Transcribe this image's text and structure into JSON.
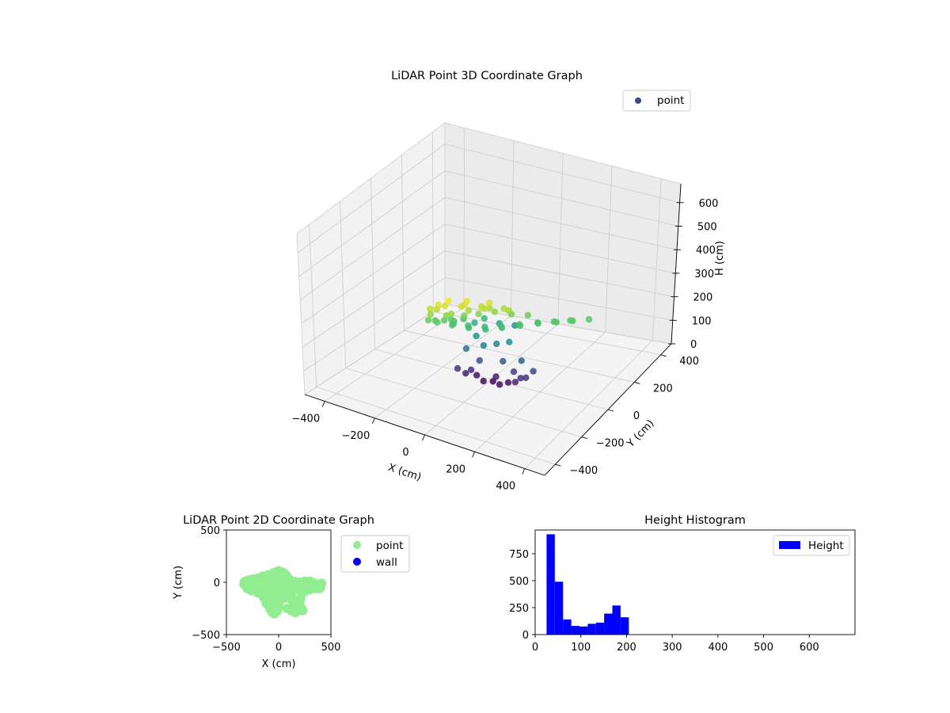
{
  "chart_data": [
    {
      "type": "scatter",
      "title": "LiDAR Point 3D Coordinate Graph",
      "xlabel": "X (cm)",
      "ylabel": "Y (cm)",
      "zlabel": "H (cm)",
      "xticks": [
        "−400",
        "−200",
        "0",
        "200",
        "400"
      ],
      "yticks": [
        "−400",
        "−200",
        "0",
        "200",
        "400"
      ],
      "zticks": [
        "0",
        "100",
        "200",
        "300",
        "400",
        "500",
        "600"
      ],
      "xlim": [
        -480,
        480
      ],
      "ylim": [
        -480,
        480
      ],
      "zlim": [
        0,
        680
      ],
      "z_inverted": true,
      "colormap": "viridis",
      "legend": {
        "position": "top-right",
        "entries": [
          {
            "label": "point",
            "color": "#3b4a8c"
          }
        ]
      },
      "series": [
        {
          "name": "point",
          "points": [
            [
              -80,
              -60,
              60
            ],
            [
              -20,
              -40,
              40
            ],
            [
              40,
              -30,
              40
            ],
            [
              100,
              -20,
              60
            ],
            [
              140,
              -10,
              80
            ],
            [
              -60,
              -20,
              45
            ],
            [
              0,
              -10,
              35
            ],
            [
              60,
              -5,
              45
            ],
            [
              110,
              0,
              70
            ],
            [
              -100,
              -80,
              80
            ],
            [
              160,
              10,
              100
            ],
            [
              -70,
              -40,
              70
            ],
            [
              20,
              -20,
              60
            ],
            [
              90,
              -10,
              90
            ],
            [
              -40,
              -30,
              110
            ],
            [
              50,
              -15,
              120
            ],
            [
              120,
              0,
              130
            ],
            [
              -90,
              -40,
              150
            ],
            [
              -20,
              -30,
              170
            ],
            [
              30,
              -20,
              180
            ],
            [
              80,
              -10,
              190
            ],
            [
              -60,
              -20,
              200
            ],
            [
              -60,
              200,
              200
            ],
            [
              -100,
              160,
              215
            ],
            [
              -150,
              80,
              230
            ],
            [
              -180,
              0,
              250
            ],
            [
              -200,
              -80,
              265
            ],
            [
              -180,
              -140,
              275
            ],
            [
              -120,
              -160,
              270
            ],
            [
              -60,
              -150,
              260
            ],
            [
              0,
              -130,
              250
            ],
            [
              60,
              -110,
              245
            ],
            [
              120,
              -90,
              250
            ],
            [
              180,
              -60,
              255
            ],
            [
              240,
              -30,
              260
            ],
            [
              300,
              0,
              262
            ],
            [
              360,
              20,
              265
            ],
            [
              420,
              40,
              268
            ],
            [
              -140,
              120,
              245
            ],
            [
              -170,
              40,
              255
            ],
            [
              -160,
              -40,
              265
            ],
            [
              -140,
              -100,
              270
            ],
            [
              -80,
              -120,
              260
            ],
            [
              -20,
              -110,
              255
            ],
            [
              40,
              -90,
              250
            ],
            [
              100,
              -70,
              252
            ],
            [
              160,
              -40,
              256
            ],
            [
              220,
              -10,
              260
            ],
            [
              280,
              10,
              262
            ],
            [
              340,
              30,
              265
            ],
            [
              -80,
              -60,
              285
            ],
            [
              -20,
              -50,
              290
            ],
            [
              40,
              -30,
              295
            ],
            [
              100,
              -10,
              285
            ],
            [
              160,
              10,
              280
            ],
            [
              30,
              -45,
              310
            ],
            [
              -40,
              -80,
              305
            ],
            [
              -150,
              -160,
              300
            ],
            [
              -90,
              -190,
              320
            ],
            [
              -30,
              -210,
              330
            ],
            [
              40,
              -200,
              325
            ],
            [
              120,
              -170,
              315
            ],
            [
              200,
              -130,
              305
            ],
            [
              20,
              -160,
              330
            ],
            [
              80,
              -140,
              320
            ],
            [
              160,
              -110,
              310
            ],
            [
              -60,
              -150,
              300
            ],
            [
              -120,
              -110,
              290
            ],
            [
              -180,
              -130,
              320
            ],
            [
              -100,
              -170,
              335
            ],
            [
              -20,
              -200,
              345
            ],
            [
              60,
              -190,
              340
            ],
            [
              140,
              -160,
              330
            ]
          ]
        }
      ]
    },
    {
      "type": "scatter",
      "title": "LiDAR Point 2D Coordinate Graph",
      "xlabel": "X (cm)",
      "ylabel": "Y (cm)",
      "xlim": [
        -500,
        500
      ],
      "ylim": [
        -500,
        500
      ],
      "xticks": [
        "−500",
        "0",
        "500"
      ],
      "yticks": [
        "500",
        "0",
        "−500"
      ],
      "legend": {
        "position": "outside-right",
        "entries": [
          {
            "label": "point",
            "color": "#90ee90"
          },
          {
            "label": "wall",
            "color": "#0000ff"
          }
        ]
      },
      "series": [
        {
          "name": "point",
          "color": "#90ee90",
          "points": [
            [
              -330,
              0
            ],
            [
              -330,
              -20
            ],
            [
              -320,
              10
            ],
            [
              -310,
              -40
            ],
            [
              -300,
              -10
            ],
            [
              -290,
              20
            ],
            [
              -280,
              -50
            ],
            [
              -260,
              -30
            ],
            [
              -250,
              10
            ],
            [
              -240,
              -60
            ],
            [
              -230,
              -20
            ],
            [
              -220,
              20
            ],
            [
              -210,
              -80
            ],
            [
              -200,
              -40
            ],
            [
              -190,
              0
            ],
            [
              -180,
              30
            ],
            [
              -170,
              -110
            ],
            [
              -160,
              -70
            ],
            [
              -150,
              -20
            ],
            [
              -140,
              40
            ],
            [
              -130,
              -140
            ],
            [
              -120,
              -100
            ],
            [
              -110,
              -50
            ],
            [
              -100,
              10
            ],
            [
              -90,
              60
            ],
            [
              -80,
              -200
            ],
            [
              -70,
              -160
            ],
            [
              -60,
              -120
            ],
            [
              -50,
              -70
            ],
            [
              -40,
              -20
            ],
            [
              -30,
              30
            ],
            [
              -20,
              80
            ],
            [
              -10,
              -260
            ],
            [
              0,
              -230
            ],
            [
              10,
              -180
            ],
            [
              20,
              -130
            ],
            [
              30,
              -80
            ],
            [
              40,
              -30
            ],
            [
              50,
              20
            ],
            [
              60,
              70
            ],
            [
              -100,
              -220
            ],
            [
              -80,
              -260
            ],
            [
              -60,
              -290
            ],
            [
              -40,
              -300
            ],
            [
              -20,
              -280
            ],
            [
              10,
              100
            ],
            [
              -20,
              100
            ],
            [
              40,
              95
            ],
            [
              70,
              70
            ],
            [
              90,
              40
            ],
            [
              100,
              0
            ],
            [
              110,
              -50
            ],
            [
              120,
              -100
            ],
            [
              130,
              -150
            ],
            [
              140,
              -200
            ],
            [
              150,
              -240
            ],
            [
              160,
              -270
            ],
            [
              170,
              -280
            ],
            [
              180,
              -260
            ],
            [
              190,
              -230
            ],
            [
              200,
              -200
            ],
            [
              210,
              -160
            ],
            [
              220,
              -110
            ],
            [
              230,
              -60
            ],
            [
              240,
              -10
            ],
            [
              260,
              -30
            ],
            [
              280,
              -50
            ],
            [
              300,
              -20
            ],
            [
              320,
              -40
            ],
            [
              340,
              -10
            ],
            [
              360,
              -30
            ],
            [
              380,
              -20
            ],
            [
              400,
              -50
            ],
            [
              410,
              -10
            ],
            [
              390,
              -60
            ],
            [
              350,
              -60
            ],
            [
              300,
              -70
            ],
            [
              260,
              -80
            ],
            [
              200,
              -80
            ],
            [
              150,
              -60
            ],
            [
              -280,
              20
            ],
            [
              -250,
              30
            ],
            [
              -200,
              40
            ],
            [
              -150,
              60
            ],
            [
              -100,
              70
            ],
            [
              -50,
              90
            ],
            [
              0,
              110
            ],
            [
              50,
              90
            ],
            [
              100,
              30
            ],
            [
              150,
              10
            ],
            [
              200,
              0
            ],
            [
              250,
              10
            ],
            [
              300,
              10
            ],
            [
              -300,
              -60
            ],
            [
              -260,
              -80
            ],
            [
              -200,
              -100
            ],
            [
              -140,
              -150
            ],
            [
              -120,
              -200
            ],
            [
              -60,
              -240
            ],
            [
              0,
              -200
            ],
            [
              60,
              -150
            ],
            [
              100,
              -120
            ],
            [
              130,
              -180
            ],
            [
              180,
              -230
            ],
            [
              220,
              -250
            ],
            [
              230,
              -270
            ],
            [
              160,
              -290
            ],
            [
              120,
              -270
            ],
            [
              80,
              -250
            ]
          ]
        },
        {
          "name": "wall",
          "color": "#0000ff",
          "points": []
        }
      ]
    },
    {
      "type": "bar",
      "title": "Height Histogram",
      "xlim": [
        0,
        700
      ],
      "ylim": [
        0,
        970
      ],
      "xticks": [
        0,
        100,
        200,
        300,
        400,
        500,
        600
      ],
      "yticks": [
        0,
        250,
        500,
        750
      ],
      "color": "#0000ff",
      "legend": {
        "position": "top-right",
        "entries": [
          {
            "label": "Height",
            "color": "#0000ff"
          }
        ]
      },
      "bin_edges": [
        25,
        43,
        61,
        79,
        97,
        115,
        133,
        151,
        169,
        187,
        205
      ],
      "values": [
        930,
        490,
        140,
        80,
        75,
        100,
        110,
        195,
        270,
        160
      ]
    }
  ]
}
